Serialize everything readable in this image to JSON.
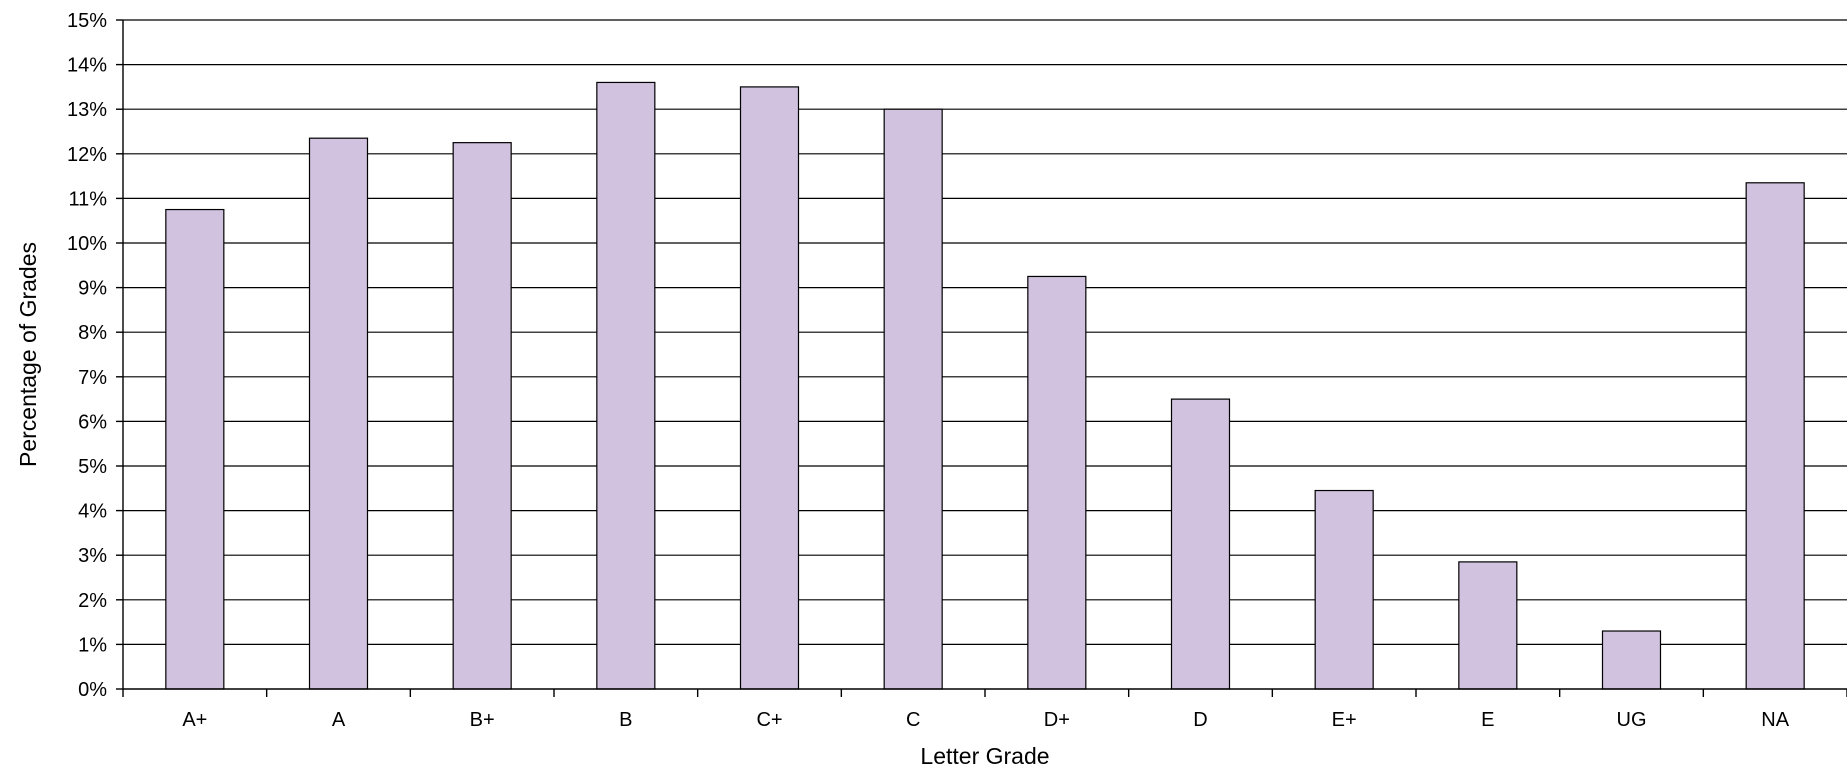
{
  "chart_data": {
    "type": "bar",
    "title": "",
    "xlabel": "Letter Grade",
    "ylabel": "Percentage of Grades",
    "categories": [
      "A+",
      "A",
      "B+",
      "B",
      "C+",
      "C",
      "D+",
      "D",
      "E+",
      "E",
      "UG",
      "NA"
    ],
    "values": [
      10.75,
      12.35,
      12.25,
      13.6,
      13.5,
      13.0,
      9.25,
      6.5,
      4.45,
      2.85,
      1.3,
      11.35
    ],
    "ylim": [
      0,
      15
    ],
    "yticks": [
      0,
      1,
      2,
      3,
      4,
      5,
      6,
      7,
      8,
      9,
      10,
      11,
      12,
      13,
      14,
      15
    ],
    "ytick_labels": [
      "0%",
      "1%",
      "2%",
      "3%",
      "4%",
      "5%",
      "6%",
      "7%",
      "8%",
      "9%",
      "10%",
      "11%",
      "12%",
      "13%",
      "14%",
      "15%"
    ],
    "grid": true,
    "legend": "none",
    "bar_color": "#d1c2df"
  }
}
